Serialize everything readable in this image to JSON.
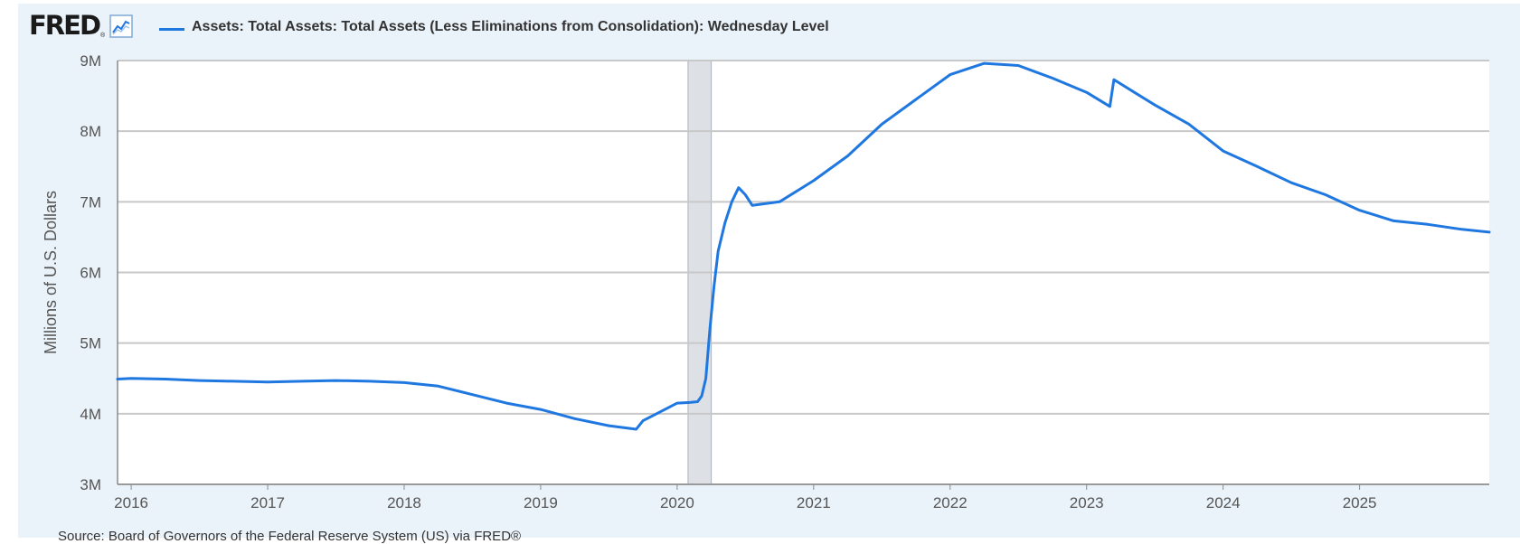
{
  "header": {
    "logo": "FRED",
    "logo_reg": "®",
    "chart_icon": "line-chart-icon",
    "legend_label": "Assets: Total Assets: Total Assets (Less Eliminations from Consolidation): Wednesday Level"
  },
  "source": "Source: Board of Governors of the Federal Reserve System (US) via FRED®",
  "colors": {
    "series": "#1f77e0",
    "recession": "#dde1e6",
    "grid": "#c8c8c8",
    "background": "#eaf2fa"
  },
  "chart_data": {
    "type": "line",
    "title": "Assets: Total Assets: Total Assets (Less Eliminations from Consolidation): Wednesday Level",
    "xlabel": "",
    "ylabel": "Millions of U.S. Dollars",
    "xlim": [
      2015.9,
      2025.95
    ],
    "ylim": [
      3000000,
      9000000
    ],
    "y_ticks": [
      {
        "value": 3000000,
        "label": "3M"
      },
      {
        "value": 4000000,
        "label": "4M"
      },
      {
        "value": 5000000,
        "label": "5M"
      },
      {
        "value": 6000000,
        "label": "6M"
      },
      {
        "value": 7000000,
        "label": "7M"
      },
      {
        "value": 8000000,
        "label": "8M"
      },
      {
        "value": 9000000,
        "label": "9M"
      }
    ],
    "x_ticks": [
      {
        "value": 2016,
        "label": "2016"
      },
      {
        "value": 2017,
        "label": "2017"
      },
      {
        "value": 2018,
        "label": "2018"
      },
      {
        "value": 2019,
        "label": "2019"
      },
      {
        "value": 2020,
        "label": "2020"
      },
      {
        "value": 2021,
        "label": "2021"
      },
      {
        "value": 2022,
        "label": "2022"
      },
      {
        "value": 2023,
        "label": "2023"
      },
      {
        "value": 2024,
        "label": "2024"
      },
      {
        "value": 2025,
        "label": "2025"
      }
    ],
    "grid": true,
    "recession_shading": [
      {
        "start": 2020.08,
        "end": 2020.25
      }
    ],
    "series": [
      {
        "name": "Assets: Total Assets: Total Assets (Less Eliminations from Consolidation): Wednesday Level",
        "points": [
          [
            2015.9,
            4490000
          ],
          [
            2016.0,
            4500000
          ],
          [
            2016.25,
            4490000
          ],
          [
            2016.5,
            4470000
          ],
          [
            2016.75,
            4460000
          ],
          [
            2017.0,
            4450000
          ],
          [
            2017.25,
            4460000
          ],
          [
            2017.5,
            4470000
          ],
          [
            2017.75,
            4460000
          ],
          [
            2018.0,
            4440000
          ],
          [
            2018.25,
            4390000
          ],
          [
            2018.5,
            4270000
          ],
          [
            2018.75,
            4150000
          ],
          [
            2019.0,
            4060000
          ],
          [
            2019.25,
            3930000
          ],
          [
            2019.5,
            3830000
          ],
          [
            2019.7,
            3780000
          ],
          [
            2019.75,
            3900000
          ],
          [
            2019.85,
            4000000
          ],
          [
            2020.0,
            4150000
          ],
          [
            2020.1,
            4160000
          ],
          [
            2020.15,
            4170000
          ],
          [
            2020.18,
            4250000
          ],
          [
            2020.21,
            4500000
          ],
          [
            2020.24,
            5200000
          ],
          [
            2020.27,
            5800000
          ],
          [
            2020.3,
            6300000
          ],
          [
            2020.35,
            6700000
          ],
          [
            2020.4,
            7000000
          ],
          [
            2020.45,
            7200000
          ],
          [
            2020.5,
            7100000
          ],
          [
            2020.55,
            6950000
          ],
          [
            2020.75,
            7000000
          ],
          [
            2021.0,
            7300000
          ],
          [
            2021.25,
            7650000
          ],
          [
            2021.5,
            8100000
          ],
          [
            2021.75,
            8450000
          ],
          [
            2022.0,
            8800000
          ],
          [
            2022.25,
            8960000
          ],
          [
            2022.5,
            8930000
          ],
          [
            2022.75,
            8750000
          ],
          [
            2023.0,
            8550000
          ],
          [
            2023.17,
            8350000
          ],
          [
            2023.2,
            8730000
          ],
          [
            2023.35,
            8550000
          ],
          [
            2023.5,
            8370000
          ],
          [
            2023.75,
            8100000
          ],
          [
            2024.0,
            7720000
          ],
          [
            2024.25,
            7500000
          ],
          [
            2024.5,
            7270000
          ],
          [
            2024.75,
            7100000
          ],
          [
            2025.0,
            6880000
          ],
          [
            2025.25,
            6730000
          ],
          [
            2025.5,
            6680000
          ],
          [
            2025.75,
            6610000
          ],
          [
            2025.95,
            6570000
          ]
        ]
      }
    ]
  }
}
